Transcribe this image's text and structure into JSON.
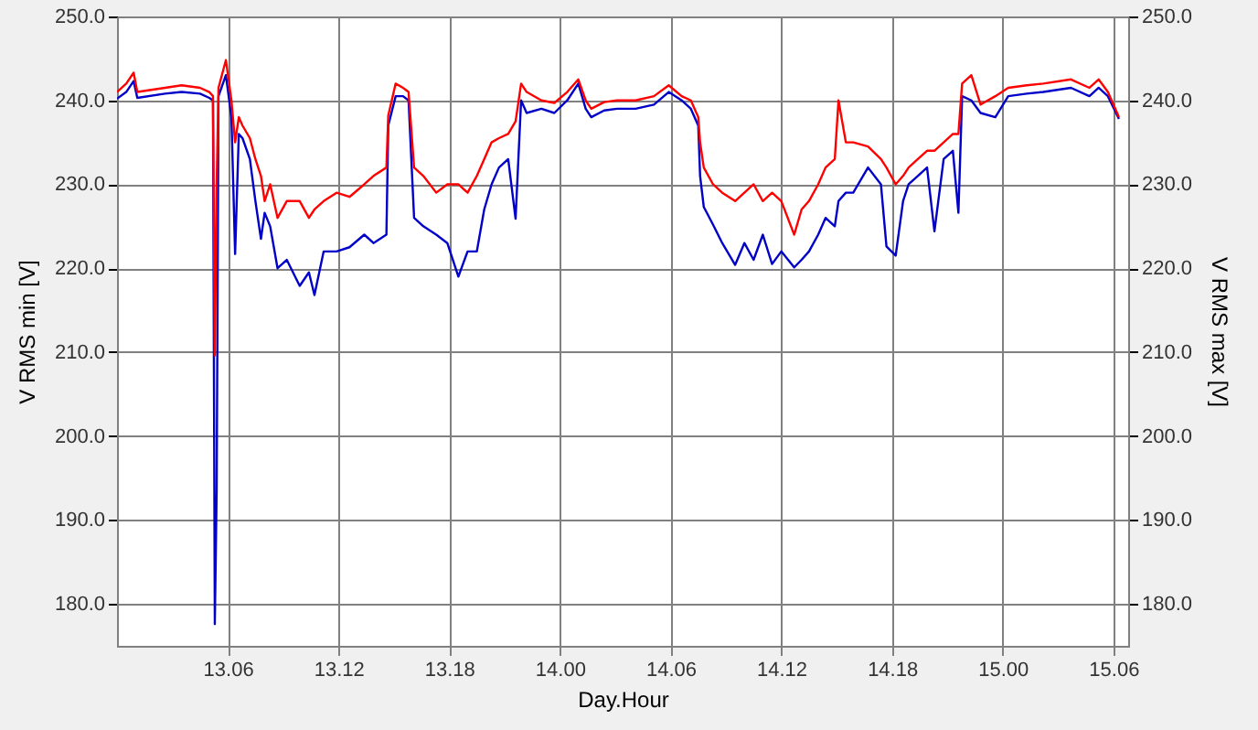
{
  "chart_data": {
    "type": "line",
    "xlabel": "Day.Hour",
    "ylabel": "V RMS min [V]",
    "y2label": "V RMS max [V]",
    "x": [
      "--01-13T00:00",
      "--01-13T00:30",
      "--01-13T00:54",
      "--01-13T01:06",
      "--01-13T02:36",
      "--01-13T03:30",
      "--01-13T04:30",
      "--01-13T05:00",
      "--01-13T05:12",
      "--01-13T05:18",
      "--01-13T05:24",
      "--01-13T05:30",
      "--01-13T05:54",
      "--01-13T06:12",
      "--01-13T06:24",
      "--01-13T06:36",
      "--01-13T06:48",
      "--01-13T07:12",
      "--01-13T07:30",
      "--01-13T07:48",
      "--01-13T08:00",
      "--01-13T08:18",
      "--01-13T08:42",
      "--01-13T09:12",
      "--01-13T09:54",
      "--01-13T10:24",
      "--01-13T10:42",
      "--01-13T11:12",
      "--01-13T11:54",
      "--01-13T12:36",
      "--01-13T13:24",
      "--01-13T13:54",
      "--01-13T14:36",
      "--01-13T14:42",
      "--01-13T15:06",
      "--01-13T15:30",
      "--01-13T15:48",
      "--01-13T16:06",
      "--01-13T16:36",
      "--01-13T17:18",
      "--01-13T17:54",
      "--01-13T18:30",
      "--01-13T19:00",
      "--01-13T19:30",
      "--01-13T19:54",
      "--01-13T20:18",
      "--01-13T20:42",
      "--01-13T21:12",
      "--01-13T21:36",
      "--01-13T21:54",
      "--01-13T22:12",
      "--01-13T23:00",
      "--01-13T23:42",
      "--01-14T00:24",
      "--01-14T01:00",
      "--01-14T01:24",
      "--01-14T01:42",
      "--01-14T02:24",
      "--01-14T03:06",
      "--01-14T04:06",
      "--01-14T05:06",
      "--01-14T05:54",
      "--01-14T06:36",
      "--01-14T07:06",
      "--01-14T07:30",
      "--01-14T07:36",
      "--01-14T07:48",
      "--01-14T08:18",
      "--01-14T08:48",
      "--01-14T09:30",
      "--01-14T10:00",
      "--01-14T10:30",
      "--01-14T11:00",
      "--01-14T11:30",
      "--01-14T12:00",
      "--01-14T12:42",
      "--01-14T13:06",
      "--01-14T13:30",
      "--01-14T14:00",
      "--01-14T14:24",
      "--01-14T14:54",
      "--01-14T15:06",
      "--01-14T15:30",
      "--01-14T15:54",
      "--01-14T16:42",
      "--01-14T17:24",
      "--01-14T17:42",
      "--01-14T18:12",
      "--01-14T18:36",
      "--01-14T18:54",
      "--01-14T19:24",
      "--01-14T19:54",
      "--01-14T20:18",
      "--01-14T20:48",
      "--01-14T21:18",
      "--01-14T21:36",
      "--01-14T21:48",
      "--01-14T22:18",
      "--01-14T22:48",
      "--01-14T23:36",
      "--01-15T00:18",
      "--01-15T01:18",
      "--01-15T02:12",
      "--01-15T03:42",
      "--01-15T04:42",
      "--01-15T05:12",
      "--01-15T05:42",
      "--01-15T06:18"
    ],
    "series": [
      {
        "color": "#0000c8",
        "values": [
          240.2,
          241,
          242.3,
          240.3,
          240.8,
          241,
          240.8,
          240.3,
          240,
          177.6,
          193.5,
          240.5,
          243,
          238,
          221.7,
          236,
          235.5,
          233,
          228,
          223.5,
          226.6,
          225,
          220,
          221,
          217.9,
          219.5,
          216.8,
          222,
          222,
          222.5,
          224,
          223,
          224,
          237,
          240.5,
          240.5,
          240,
          226,
          225,
          224,
          223,
          219,
          222,
          222,
          227,
          230,
          232,
          233,
          225.9,
          240,
          238.5,
          239,
          238.5,
          240,
          242,
          239,
          238,
          238.8,
          239,
          239,
          239.5,
          241,
          240,
          239,
          237,
          231,
          227.3,
          225.2,
          223,
          220.4,
          223,
          221,
          224,
          220.5,
          222,
          220.1,
          221,
          222,
          224,
          226,
          225,
          228,
          229,
          229,
          232,
          230,
          222.6,
          221.5,
          228,
          230,
          231,
          232,
          224.4,
          233,
          234,
          226.6,
          240.5,
          240,
          238.5,
          238,
          240.5,
          240.8,
          241,
          241.5,
          240.5,
          241.5,
          240.5,
          237.8
        ]
      },
      {
        "color": "#ff0000",
        "axis": "y2",
        "values": [
          241,
          242,
          243.3,
          241,
          241.5,
          241.8,
          241.5,
          241,
          240.5,
          209.6,
          230,
          241.5,
          244.8,
          240,
          235,
          238,
          237,
          235.5,
          233,
          231,
          228,
          230,
          226,
          228,
          228,
          226,
          227,
          228,
          229,
          228.5,
          230,
          231,
          232,
          238.2,
          242,
          241.5,
          241,
          232,
          231,
          229,
          230,
          230,
          229,
          231,
          233,
          235,
          235.5,
          236,
          237.5,
          242,
          241,
          240,
          239.7,
          241,
          242.5,
          240,
          239,
          239.8,
          240,
          240,
          240.5,
          241.8,
          240.5,
          240,
          238,
          235,
          232,
          230,
          229,
          228,
          229,
          230,
          228,
          229,
          228,
          224,
          227,
          228,
          230,
          232,
          233,
          240,
          235,
          235,
          234.5,
          233,
          232,
          230,
          231,
          232,
          233,
          234,
          234,
          235,
          236,
          236,
          242,
          243,
          239.5,
          240.5,
          241.5,
          241.8,
          242,
          242.5,
          241.5,
          242.5,
          241,
          238
        ]
      }
    ],
    "xlim": [
      "--01-13T00:00",
      "--01-15T06:48"
    ],
    "xticks": [
      {
        "value": "--01-13T06:00",
        "label": "13.06"
      },
      {
        "value": "--01-13T12:00",
        "label": "13.12"
      },
      {
        "value": "--01-13T18:00",
        "label": "13.18"
      },
      {
        "value": "--01-14T00:00",
        "label": "14.00"
      },
      {
        "value": "--01-14T06:00",
        "label": "14.06"
      },
      {
        "value": "--01-14T12:00",
        "label": "14.12"
      },
      {
        "value": "--01-14T18:00",
        "label": "14.18"
      },
      {
        "value": "--01-15T00:00",
        "label": "15.00"
      },
      {
        "value": "--01-15T06:00",
        "label": "15.06"
      }
    ],
    "ylim": [
      175,
      250
    ],
    "yticks": [
      {
        "value": 180,
        "label": "180.0"
      },
      {
        "value": 190,
        "label": "190.0"
      },
      {
        "value": 200,
        "label": "200.0"
      },
      {
        "value": 210,
        "label": "210.0"
      },
      {
        "value": 220,
        "label": "220.0"
      },
      {
        "value": 230,
        "label": "230.0"
      },
      {
        "value": 240,
        "label": "240.0"
      },
      {
        "value": 250,
        "label": "250.0"
      }
    ],
    "y2lim": [
      175,
      250
    ],
    "y2ticks": [
      {
        "value": 180,
        "label": "180.0"
      },
      {
        "value": 190,
        "label": "190.0"
      },
      {
        "value": 200,
        "label": "200.0"
      },
      {
        "value": 210,
        "label": "210.0"
      },
      {
        "value": 220,
        "label": "220.0"
      },
      {
        "value": 230,
        "label": "230.0"
      },
      {
        "value": 240,
        "label": "240.0"
      },
      {
        "value": 250,
        "label": "250.0"
      }
    ],
    "grid": true,
    "marker": "none",
    "line_style": "solid"
  }
}
